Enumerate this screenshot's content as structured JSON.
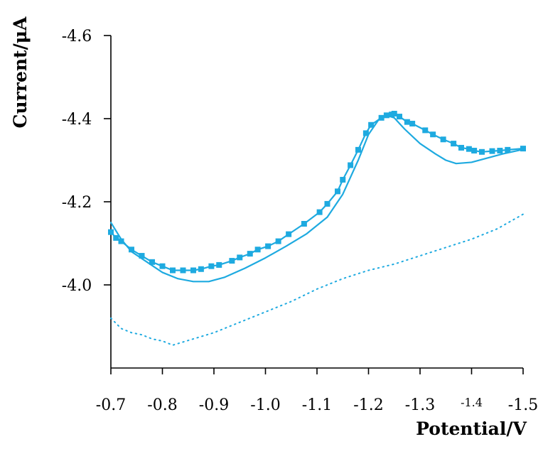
{
  "chart_data": {
    "type": "line",
    "title": "",
    "xlabel": "Potential/V",
    "ylabel": "Current/μA",
    "xlim": [
      -0.7,
      -1.5
    ],
    "ylim": [
      -3.8,
      -4.6
    ],
    "x_ticks": [
      {
        "value": -0.7,
        "label": "-0.7"
      },
      {
        "value": -0.8,
        "label": "-0.8"
      },
      {
        "value": -0.9,
        "label": "-0.9"
      },
      {
        "value": -1.0,
        "label": "-1.0"
      },
      {
        "value": -1.1,
        "label": "-1.1"
      },
      {
        "value": -1.2,
        "label": "-1.2"
      },
      {
        "value": -1.3,
        "label": "-1.3"
      },
      {
        "value": -1.4,
        "label": "-1.4"
      },
      {
        "value": -1.5,
        "label": "-1.5"
      }
    ],
    "y_ticks": [
      {
        "value": -4.0,
        "label": "-4.0"
      },
      {
        "value": -4.2,
        "label": "-4.2"
      },
      {
        "value": -4.4,
        "label": "-4.4"
      },
      {
        "value": -4.6,
        "label": "-4.6"
      }
    ],
    "grid": false,
    "legend": "none",
    "series": [
      {
        "style": "line-with-square-markers",
        "color": "#1EAAE0",
        "points": [
          [
            -0.7,
            -4.127
          ],
          [
            -0.71,
            -4.113
          ],
          [
            -0.72,
            -4.105
          ],
          [
            -0.74,
            -4.085
          ],
          [
            -0.76,
            -4.07
          ],
          [
            -0.78,
            -4.055
          ],
          [
            -0.8,
            -4.045
          ],
          [
            -0.82,
            -4.035
          ],
          [
            -0.84,
            -4.035
          ],
          [
            -0.86,
            -4.035
          ],
          [
            -0.875,
            -4.038
          ],
          [
            -0.895,
            -4.045
          ],
          [
            -0.91,
            -4.048
          ],
          [
            -0.935,
            -4.058
          ],
          [
            -0.95,
            -4.066
          ],
          [
            -0.97,
            -4.075
          ],
          [
            -0.985,
            -4.085
          ],
          [
            -1.005,
            -4.093
          ],
          [
            -1.025,
            -4.105
          ],
          [
            -1.045,
            -4.122
          ],
          [
            -1.075,
            -4.147
          ],
          [
            -1.105,
            -4.175
          ],
          [
            -1.12,
            -4.195
          ],
          [
            -1.14,
            -4.225
          ],
          [
            -1.15,
            -4.253
          ],
          [
            -1.165,
            -4.288
          ],
          [
            -1.18,
            -4.325
          ],
          [
            -1.195,
            -4.365
          ],
          [
            -1.205,
            -4.385
          ],
          [
            -1.225,
            -4.402
          ],
          [
            -1.235,
            -4.408
          ],
          [
            -1.245,
            -4.41
          ],
          [
            -1.25,
            -4.412
          ],
          [
            -1.26,
            -4.405
          ],
          [
            -1.275,
            -4.392
          ],
          [
            -1.285,
            -4.388
          ],
          [
            -1.31,
            -4.372
          ],
          [
            -1.325,
            -4.362
          ],
          [
            -1.345,
            -4.35
          ],
          [
            -1.365,
            -4.34
          ],
          [
            -1.38,
            -4.33
          ],
          [
            -1.395,
            -4.327
          ],
          [
            -1.405,
            -4.323
          ],
          [
            -1.42,
            -4.32
          ],
          [
            -1.44,
            -4.322
          ],
          [
            -1.455,
            -4.323
          ],
          [
            -1.47,
            -4.325
          ],
          [
            -1.5,
            -4.328
          ]
        ]
      },
      {
        "style": "solid-line",
        "color": "#1EAAE0",
        "points": [
          [
            -0.7,
            -4.15
          ],
          [
            -0.72,
            -4.11
          ],
          [
            -0.74,
            -4.08
          ],
          [
            -0.77,
            -4.055
          ],
          [
            -0.8,
            -4.03
          ],
          [
            -0.83,
            -4.015
          ],
          [
            -0.86,
            -4.008
          ],
          [
            -0.89,
            -4.008
          ],
          [
            -0.92,
            -4.018
          ],
          [
            -0.96,
            -4.04
          ],
          [
            -1.0,
            -4.065
          ],
          [
            -1.04,
            -4.093
          ],
          [
            -1.08,
            -4.123
          ],
          [
            -1.12,
            -4.163
          ],
          [
            -1.15,
            -4.218
          ],
          [
            -1.18,
            -4.3
          ],
          [
            -1.2,
            -4.362
          ],
          [
            -1.22,
            -4.398
          ],
          [
            -1.235,
            -4.408
          ],
          [
            -1.25,
            -4.402
          ],
          [
            -1.27,
            -4.375
          ],
          [
            -1.3,
            -4.34
          ],
          [
            -1.33,
            -4.315
          ],
          [
            -1.35,
            -4.3
          ],
          [
            -1.37,
            -4.292
          ],
          [
            -1.4,
            -4.295
          ],
          [
            -1.43,
            -4.305
          ],
          [
            -1.46,
            -4.315
          ],
          [
            -1.5,
            -4.326
          ]
        ]
      },
      {
        "style": "dotted-line",
        "color": "#1EAAE0",
        "points": [
          [
            -0.7,
            -3.92
          ],
          [
            -0.72,
            -3.895
          ],
          [
            -0.74,
            -3.885
          ],
          [
            -0.76,
            -3.88
          ],
          [
            -0.78,
            -3.87
          ],
          [
            -0.8,
            -3.865
          ],
          [
            -0.82,
            -3.855
          ],
          [
            -0.86,
            -3.87
          ],
          [
            -0.9,
            -3.885
          ],
          [
            -0.95,
            -3.91
          ],
          [
            -1.0,
            -3.935
          ],
          [
            -1.05,
            -3.96
          ],
          [
            -1.1,
            -3.99
          ],
          [
            -1.15,
            -4.015
          ],
          [
            -1.2,
            -4.035
          ],
          [
            -1.25,
            -4.05
          ],
          [
            -1.3,
            -4.07
          ],
          [
            -1.35,
            -4.09
          ],
          [
            -1.4,
            -4.11
          ],
          [
            -1.45,
            -4.135
          ],
          [
            -1.5,
            -4.17
          ]
        ]
      }
    ]
  }
}
